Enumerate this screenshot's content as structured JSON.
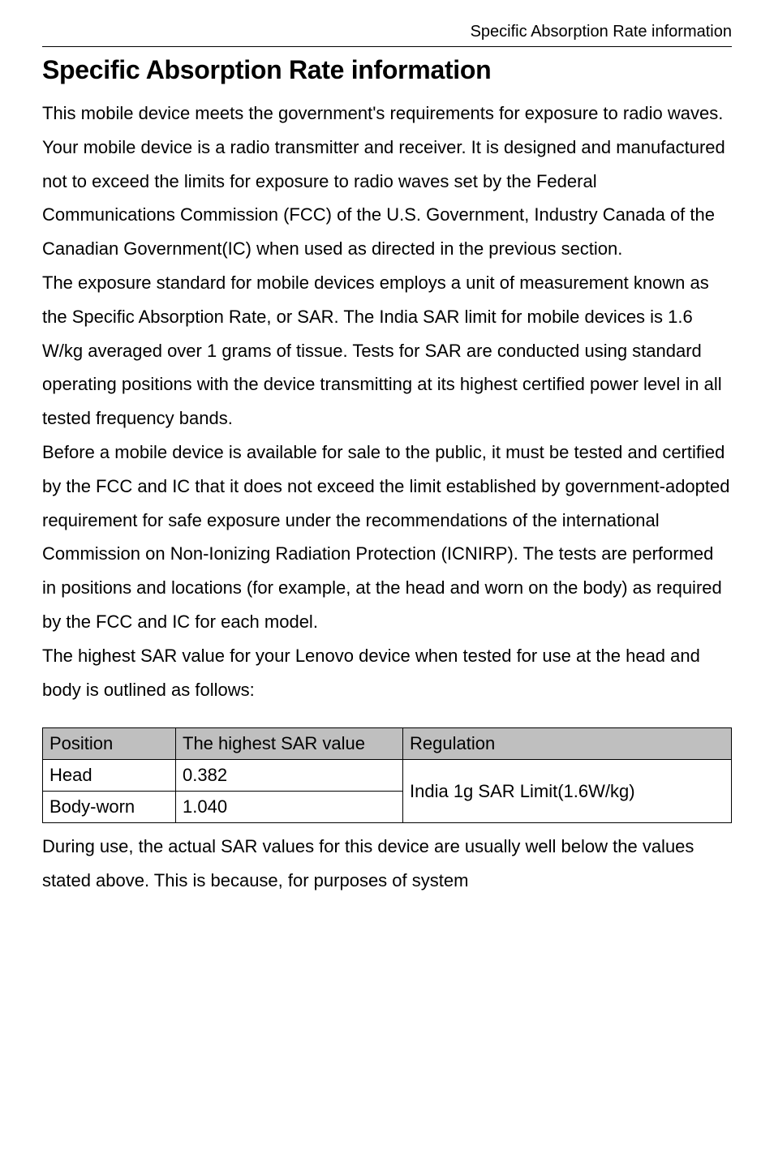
{
  "header": {
    "running_title": "Specific Absorption Rate information"
  },
  "title": "Specific Absorption Rate information",
  "paragraphs": {
    "p1": "This mobile device meets the government's requirements for exposure to radio waves.",
    "p2": "Your mobile device is a radio transmitter and receiver. It is designed and manufactured not to exceed the limits for exposure to radio waves set by the Federal Communications Commission (FCC) of the U.S. Government, Industry Canada of the Canadian Government(IC) when used as directed in the previous section.",
    "p3": "The exposure standard for mobile devices employs a unit of measurement known as the Specific Absorption Rate, or SAR. The India SAR limit for mobile devices is 1.6 W/kg averaged over 1 grams of tissue. Tests for SAR are conducted using standard operating positions with the device transmitting at its highest certified power level in all tested frequency bands.",
    "p4": "Before a mobile device is available for sale to the public, it must be tested and certified by the FCC and IC that it does not exceed the limit established by government-adopted requirement for safe exposure under the recommendations of the international Commission on Non-Ionizing Radiation Protection (ICNIRP). The tests are performed in positions and locations (for example, at the head and worn on the body) as required by the FCC and IC for each model.",
    "p5": "The highest SAR value for your Lenovo device when tested for use at the head and body is outlined as follows:",
    "p6": "During use, the actual SAR values for this device are usually well below the values stated above. This is because, for purposes of system"
  },
  "table": {
    "type": "table",
    "header_bg": "#bfbfbf",
    "border_color": "#000000",
    "columns": [
      "Position",
      "The highest SAR value",
      "Regulation"
    ],
    "rows": [
      {
        "position": "Head",
        "value": "0.382"
      },
      {
        "position": "Body-worn",
        "value": "1.040"
      }
    ],
    "regulation": "India 1g SAR Limit(1.6W/kg)"
  }
}
